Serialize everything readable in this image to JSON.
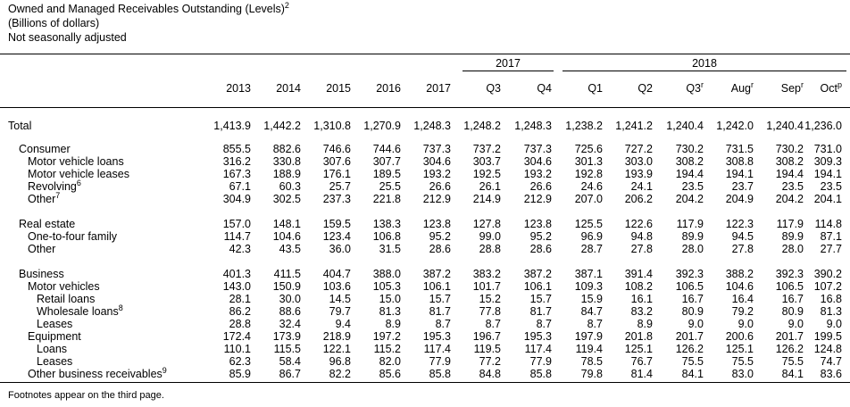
{
  "header": {
    "title": "Owned and Managed Receivables Outstanding (Levels)",
    "title_footnote": "2",
    "units": "(Billions of dollars)",
    "adjustment": "Not seasonally adjusted"
  },
  "column_groups": [
    {
      "label": "2017"
    },
    {
      "label": "2018"
    }
  ],
  "columns": [
    {
      "label": "2013",
      "sup": ""
    },
    {
      "label": "2014",
      "sup": ""
    },
    {
      "label": "2015",
      "sup": ""
    },
    {
      "label": "2016",
      "sup": ""
    },
    {
      "label": "2017",
      "sup": ""
    },
    {
      "label": "Q3",
      "sup": ""
    },
    {
      "label": "Q4",
      "sup": ""
    },
    {
      "label": "Q1",
      "sup": ""
    },
    {
      "label": "Q2",
      "sup": ""
    },
    {
      "label": "Q3",
      "sup": "r"
    },
    {
      "label": "Aug",
      "sup": "r"
    },
    {
      "label": "Sep",
      "sup": "r"
    },
    {
      "label": "Oct",
      "sup": "p"
    }
  ],
  "rows": [
    {
      "label": "Total",
      "sup": "",
      "level": 0,
      "values": [
        "1,413.9",
        "1,442.2",
        "1,310.8",
        "1,270.9",
        "1,248.3",
        "1,248.2",
        "1,248.3",
        "1,238.2",
        "1,241.2",
        "1,240.4",
        "1,242.0",
        "1,240.4",
        "1,236.0"
      ]
    },
    {
      "label": "Consumer",
      "sup": "",
      "level": 1,
      "values": [
        "855.5",
        "882.6",
        "746.6",
        "744.6",
        "737.3",
        "737.2",
        "737.3",
        "725.6",
        "727.2",
        "730.2",
        "731.5",
        "730.2",
        "731.0"
      ]
    },
    {
      "label": "Motor vehicle loans",
      "sup": "",
      "level": 2,
      "values": [
        "316.2",
        "330.8",
        "307.6",
        "307.7",
        "304.6",
        "303.7",
        "304.6",
        "301.3",
        "303.0",
        "308.2",
        "308.8",
        "308.2",
        "309.3"
      ]
    },
    {
      "label": "Motor vehicle leases",
      "sup": "",
      "level": 2,
      "values": [
        "167.3",
        "188.9",
        "176.1",
        "189.5",
        "193.2",
        "192.5",
        "193.2",
        "192.8",
        "193.9",
        "194.4",
        "194.1",
        "194.4",
        "194.1"
      ]
    },
    {
      "label": "Revolving",
      "sup": "6",
      "level": 2,
      "values": [
        "67.1",
        "60.3",
        "25.7",
        "25.5",
        "26.6",
        "26.1",
        "26.6",
        "24.6",
        "24.1",
        "23.5",
        "23.7",
        "23.5",
        "23.5"
      ]
    },
    {
      "label": "Other",
      "sup": "7",
      "level": 2,
      "values": [
        "304.9",
        "302.5",
        "237.3",
        "221.8",
        "212.9",
        "214.9",
        "212.9",
        "207.0",
        "206.2",
        "204.2",
        "204.9",
        "204.2",
        "204.1"
      ]
    },
    {
      "label": "Real estate",
      "sup": "",
      "level": 1,
      "values": [
        "157.0",
        "148.1",
        "159.5",
        "138.3",
        "123.8",
        "127.8",
        "123.8",
        "125.5",
        "122.6",
        "117.9",
        "122.3",
        "117.9",
        "114.8"
      ]
    },
    {
      "label": "One-to-four family",
      "sup": "",
      "level": 2,
      "values": [
        "114.7",
        "104.6",
        "123.4",
        "106.8",
        "95.2",
        "99.0",
        "95.2",
        "96.9",
        "94.8",
        "89.9",
        "94.5",
        "89.9",
        "87.1"
      ]
    },
    {
      "label": "Other",
      "sup": "",
      "level": 2,
      "values": [
        "42.3",
        "43.5",
        "36.0",
        "31.5",
        "28.6",
        "28.8",
        "28.6",
        "28.7",
        "27.8",
        "28.0",
        "27.8",
        "28.0",
        "27.7"
      ]
    },
    {
      "label": "Business",
      "sup": "",
      "level": 1,
      "values": [
        "401.3",
        "411.5",
        "404.7",
        "388.0",
        "387.2",
        "383.2",
        "387.2",
        "387.1",
        "391.4",
        "392.3",
        "388.2",
        "392.3",
        "390.2"
      ]
    },
    {
      "label": "Motor vehicles",
      "sup": "",
      "level": 2,
      "values": [
        "143.0",
        "150.9",
        "103.6",
        "105.3",
        "106.1",
        "101.7",
        "106.1",
        "109.3",
        "108.2",
        "106.5",
        "104.6",
        "106.5",
        "107.2"
      ]
    },
    {
      "label": "Retail loans",
      "sup": "",
      "level": 3,
      "values": [
        "28.1",
        "30.0",
        "14.5",
        "15.0",
        "15.7",
        "15.2",
        "15.7",
        "15.9",
        "16.1",
        "16.7",
        "16.4",
        "16.7",
        "16.8"
      ]
    },
    {
      "label": "Wholesale loans",
      "sup": "8",
      "level": 3,
      "values": [
        "86.2",
        "88.6",
        "79.7",
        "81.3",
        "81.7",
        "77.8",
        "81.7",
        "84.7",
        "83.2",
        "80.9",
        "79.2",
        "80.9",
        "81.3"
      ]
    },
    {
      "label": "Leases",
      "sup": "",
      "level": 3,
      "values": [
        "28.8",
        "32.4",
        "9.4",
        "8.9",
        "8.7",
        "8.7",
        "8.7",
        "8.7",
        "8.9",
        "9.0",
        "9.0",
        "9.0",
        "9.0"
      ]
    },
    {
      "label": "Equipment",
      "sup": "",
      "level": 2,
      "values": [
        "172.4",
        "173.9",
        "218.9",
        "197.2",
        "195.3",
        "196.7",
        "195.3",
        "197.9",
        "201.8",
        "201.7",
        "200.6",
        "201.7",
        "199.5"
      ]
    },
    {
      "label": "Loans",
      "sup": "",
      "level": 3,
      "values": [
        "110.1",
        "115.5",
        "122.1",
        "115.2",
        "117.4",
        "119.5",
        "117.4",
        "119.4",
        "125.1",
        "126.2",
        "125.1",
        "126.2",
        "124.8"
      ]
    },
    {
      "label": "Leases",
      "sup": "",
      "level": 3,
      "values": [
        "62.3",
        "58.4",
        "96.8",
        "82.0",
        "77.9",
        "77.2",
        "77.9",
        "78.5",
        "76.7",
        "75.5",
        "75.5",
        "75.5",
        "74.7"
      ]
    },
    {
      "label": "Other business receivables",
      "sup": "9",
      "level": 2,
      "values": [
        "85.9",
        "86.7",
        "82.2",
        "85.6",
        "85.8",
        "84.8",
        "85.8",
        "79.8",
        "81.4",
        "84.1",
        "83.0",
        "84.1",
        "83.6"
      ]
    }
  ],
  "footnote": "Footnotes appear on the third page."
}
